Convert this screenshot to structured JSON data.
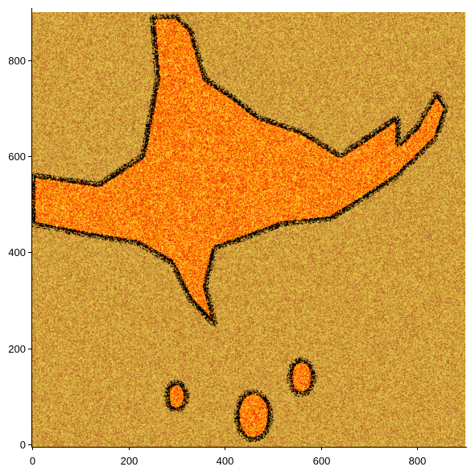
{
  "chart_data": {
    "type": "heatmap",
    "title": "",
    "xlabel": "",
    "ylabel": "",
    "xlim": [
      0,
      900
    ],
    "ylim": [
      -5,
      900
    ],
    "xticks": [
      0,
      200,
      400,
      600,
      800
    ],
    "yticks": [
      0,
      200,
      400,
      600,
      800
    ],
    "xtick_labels": [
      "0",
      "200",
      "400",
      "600",
      "800"
    ],
    "ytick_labels": [
      "0",
      "200",
      "400",
      "600",
      "800"
    ],
    "grid": false,
    "colormap": "hot",
    "colors": {
      "background_noise": [
        "#d9a640",
        "#c8862a",
        "#e6cc4d",
        "#b5622a",
        "#d4b845"
      ],
      "region_fill": [
        "#ff8c00",
        "#ff5a00",
        "#ffb000",
        "#e62800",
        "#ffd24d"
      ],
      "region_border": "#000000"
    },
    "region": {
      "description_points_data_units": {
        "west_arm": [
          [
            0,
            560
          ],
          [
            140,
            540
          ],
          [
            230,
            600
          ],
          [
            260,
            760
          ],
          [
            250,
            890
          ],
          [
            300,
            890
          ]
        ],
        "main_body": [
          [
            300,
            890
          ],
          [
            330,
            860
          ],
          [
            360,
            760
          ],
          [
            420,
            720
          ],
          [
            470,
            680
          ],
          [
            560,
            650
          ],
          [
            640,
            600
          ],
          [
            700,
            640
          ],
          [
            760,
            680
          ]
        ],
        "east_spur": [
          [
            760,
            620
          ],
          [
            800,
            660
          ],
          [
            840,
            730
          ],
          [
            860,
            700
          ],
          [
            840,
            640
          ]
        ],
        "south_edge": [
          [
            760,
            560
          ],
          [
            700,
            520
          ],
          [
            620,
            470
          ],
          [
            520,
            460
          ],
          [
            440,
            430
          ],
          [
            380,
            410
          ],
          [
            360,
            330
          ],
          [
            380,
            250
          ],
          [
            330,
            300
          ],
          [
            290,
            380
          ],
          [
            220,
            420
          ],
          [
            100,
            440
          ],
          [
            0,
            460
          ]
        ],
        "south_blobs": [
          {
            "cx": 460,
            "cy": 60,
            "r": 35
          },
          {
            "cx": 560,
            "cy": 140,
            "r": 25
          },
          {
            "cx": 300,
            "cy": 100,
            "r": 20
          }
        ]
      }
    }
  }
}
